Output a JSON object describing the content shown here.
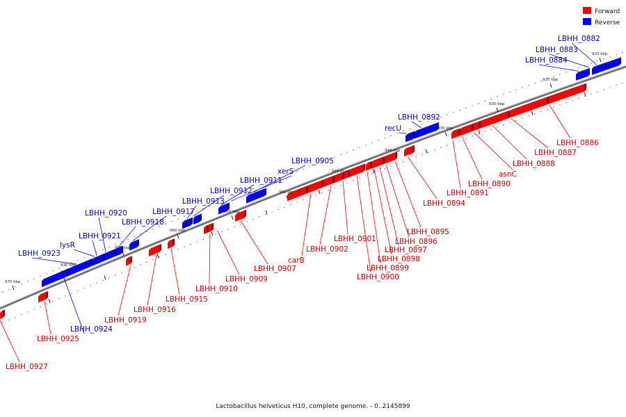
{
  "caption": "Lactobacillus helveticus H10, complete genome. - 0..2145899",
  "legend": [
    {
      "label": "Forward",
      "color": "#ff0000"
    },
    {
      "label": "Reverse",
      "color": "#0000ff"
    }
  ],
  "tick_labels": [
    "920 kbp",
    "925 kbp",
    "930 kbp",
    "935 kbp",
    "940 kbp",
    "945 kbp",
    "950 kbp",
    "955 kbp",
    "960 kbp",
    "965 kbp",
    "970 kbp",
    "975 kbp"
  ],
  "genes": [
    {
      "name": "LBHH_0882",
      "strand": "reverse"
    },
    {
      "name": "LBHH_0883",
      "strand": "reverse"
    },
    {
      "name": "LBHH_0884",
      "strand": "reverse"
    },
    {
      "name": "LBHH_0886",
      "strand": "forward"
    },
    {
      "name": "LBHH_0887",
      "strand": "forward"
    },
    {
      "name": "LBHH_0888",
      "strand": "forward"
    },
    {
      "name": "asnC",
      "strand": "forward"
    },
    {
      "name": "LBHH_0890",
      "strand": "forward"
    },
    {
      "name": "LBHH_0891",
      "strand": "forward"
    },
    {
      "name": "LBHH_0892",
      "strand": "reverse"
    },
    {
      "name": "recU",
      "strand": "reverse"
    },
    {
      "name": "LBHH_0894",
      "strand": "forward"
    },
    {
      "name": "LBHH_0895",
      "strand": "forward"
    },
    {
      "name": "LBHH_0896",
      "strand": "forward"
    },
    {
      "name": "LBHH_0897",
      "strand": "forward"
    },
    {
      "name": "LBHH_0898",
      "strand": "forward"
    },
    {
      "name": "LBHH_0899",
      "strand": "forward"
    },
    {
      "name": "LBHH_0900",
      "strand": "forward"
    },
    {
      "name": "LBHH_0901",
      "strand": "forward"
    },
    {
      "name": "LBHH_0902",
      "strand": "forward"
    },
    {
      "name": "carB",
      "strand": "forward"
    },
    {
      "name": "LBHH_0905",
      "strand": "reverse"
    },
    {
      "name": "xerS",
      "strand": "reverse"
    },
    {
      "name": "LBHH_0911",
      "strand": "reverse"
    },
    {
      "name": "LBHH_0912",
      "strand": "reverse"
    },
    {
      "name": "LBHH_0913",
      "strand": "reverse"
    },
    {
      "name": "LBHH_0907",
      "strand": "forward"
    },
    {
      "name": "LBHH_0909",
      "strand": "forward"
    },
    {
      "name": "LBHH_0910",
      "strand": "forward"
    },
    {
      "name": "LBHH_0917",
      "strand": "reverse"
    },
    {
      "name": "LBHH_0918",
      "strand": "reverse"
    },
    {
      "name": "LBHH_0920",
      "strand": "reverse"
    },
    {
      "name": "LBHH_0921",
      "strand": "reverse"
    },
    {
      "name": "lysR",
      "strand": "reverse"
    },
    {
      "name": "LBHH_0923",
      "strand": "reverse"
    },
    {
      "name": "LBHH_0915",
      "strand": "forward"
    },
    {
      "name": "LBHH_0916",
      "strand": "forward"
    },
    {
      "name": "LBHH_0919",
      "strand": "forward"
    },
    {
      "name": "LBHH_0924",
      "strand": "reverse"
    },
    {
      "name": "LBHH_0925",
      "strand": "forward"
    },
    {
      "name": "LBHH_0927",
      "strand": "forward"
    }
  ]
}
